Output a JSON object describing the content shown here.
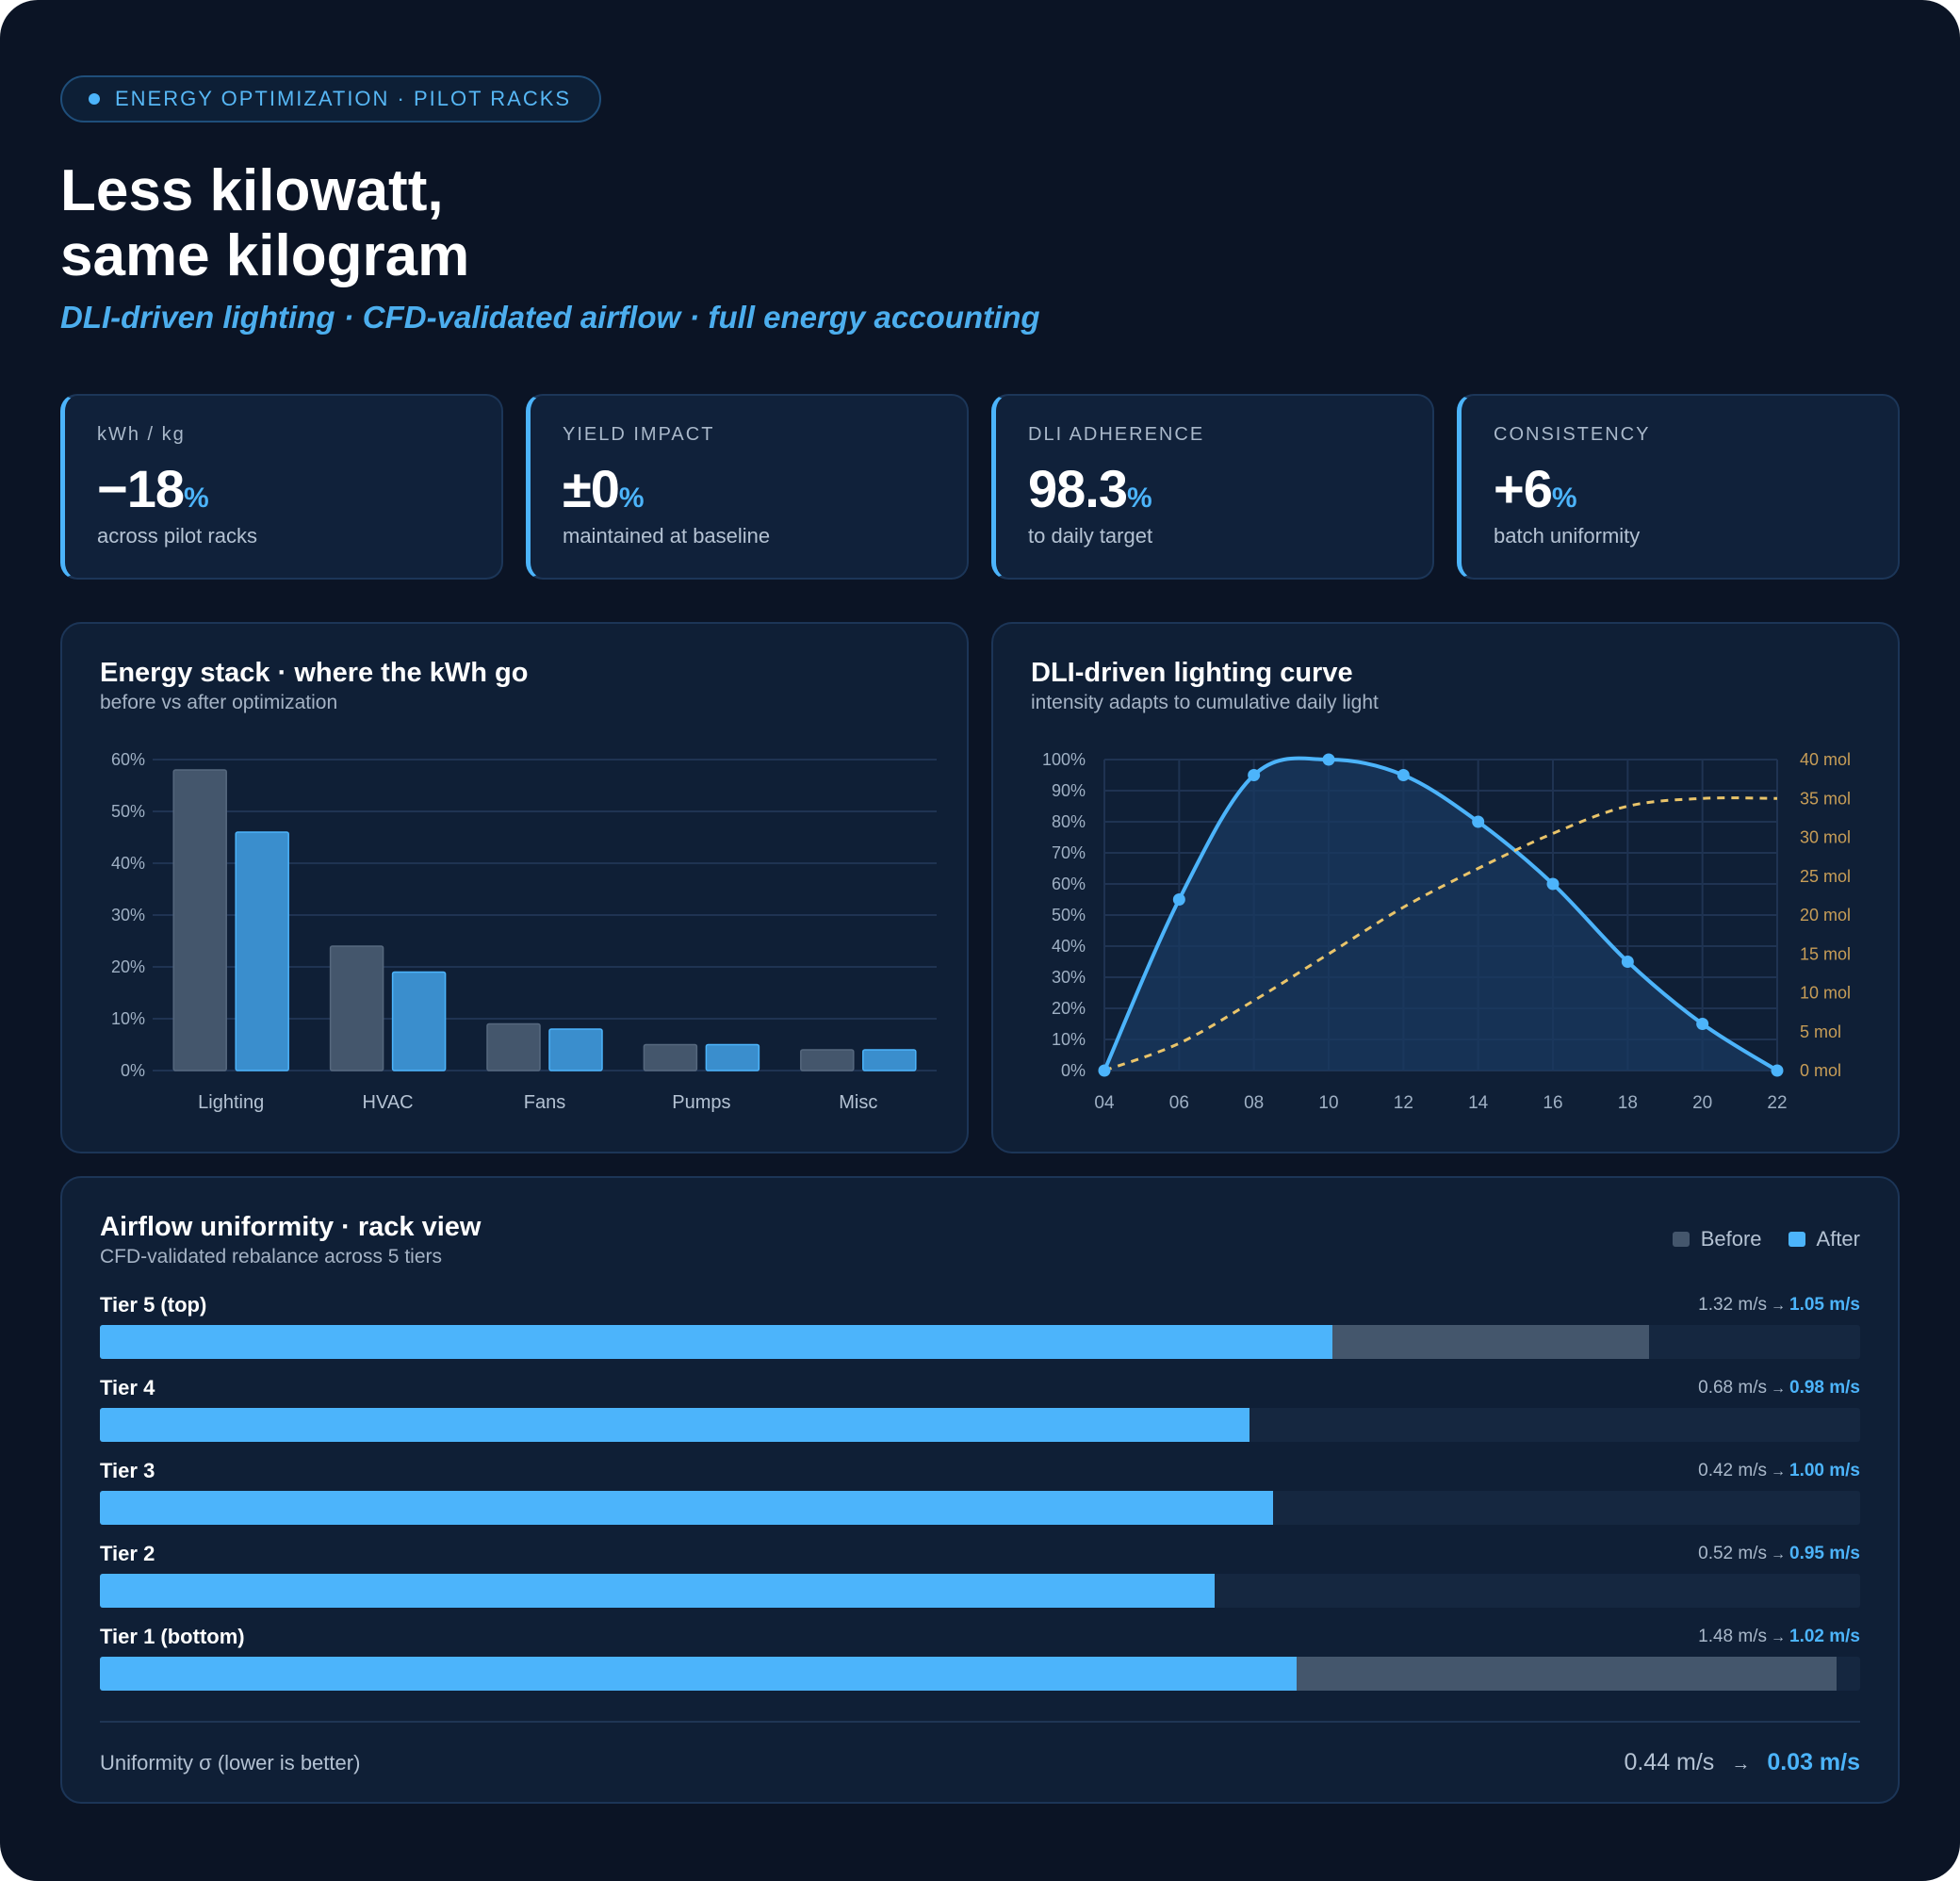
{
  "header": {
    "badge": "ENERGY OPTIMIZATION · PILOT RACKS",
    "title_line1": "Less kilowatt,",
    "title_line2": "same kilogram",
    "subtitle": "DLI-driven lighting · CFD-validated airflow · full energy accounting"
  },
  "kpis": [
    {
      "label": "kWh / kg",
      "value": "−18",
      "unit": "%",
      "note": "across pilot racks"
    },
    {
      "label": "YIELD IMPACT",
      "value": "±0",
      "unit": "%",
      "note": "maintained at baseline"
    },
    {
      "label": "DLI ADHERENCE",
      "value": "98.3",
      "unit": "%",
      "note": "to daily target"
    },
    {
      "label": "CONSISTENCY",
      "value": "+6",
      "unit": "%",
      "note": "batch uniformity"
    }
  ],
  "colors": {
    "accent": "#4cb4fb",
    "before": "#44566c",
    "after": "#4cb4fb",
    "cumulative": "#e9c46a"
  },
  "energy": {
    "title": "Energy stack · where the kWh go",
    "subtitle": "before vs after optimization"
  },
  "lighting": {
    "title": "DLI-driven lighting curve",
    "subtitle": "intensity adapts to cumulative daily light"
  },
  "airflow": {
    "title": "Airflow uniformity · rack view",
    "subtitle": "CFD-validated rebalance across 5 tiers",
    "legend_before": "Before",
    "legend_after": "After",
    "scale_max": 1.5,
    "tiers": [
      {
        "name": "Tier 5 (top)",
        "before": 1.32,
        "after": 1.05,
        "before_label": "1.32 m/s",
        "after_label": "1.05 m/s"
      },
      {
        "name": "Tier 4",
        "before": 0.68,
        "after": 0.98,
        "before_label": "0.68 m/s",
        "after_label": "0.98 m/s"
      },
      {
        "name": "Tier 3",
        "before": 0.42,
        "after": 1.0,
        "before_label": "0.42 m/s",
        "after_label": "1.00 m/s"
      },
      {
        "name": "Tier 2",
        "before": 0.52,
        "after": 0.95,
        "before_label": "0.52 m/s",
        "after_label": "0.95 m/s"
      },
      {
        "name": "Tier 1 (bottom)",
        "before": 1.48,
        "after": 1.02,
        "before_label": "1.48 m/s",
        "after_label": "1.02 m/s"
      }
    ],
    "sigma_label": "Uniformity σ (lower is better)",
    "sigma_before": "0.44 m/s",
    "sigma_after": "0.03 m/s",
    "arrow": "→"
  },
  "chart_data": [
    {
      "type": "bar",
      "title": "Energy stack · where the kWh go",
      "subtitle": "before vs after optimization",
      "categories": [
        "Lighting",
        "HVAC",
        "Fans",
        "Pumps",
        "Misc"
      ],
      "series": [
        {
          "name": "Before",
          "values": [
            58,
            24,
            9,
            5,
            4
          ]
        },
        {
          "name": "After",
          "values": [
            46,
            19,
            8,
            5,
            4
          ]
        }
      ],
      "ylim": [
        0,
        60
      ],
      "yticks": [
        "0%",
        "10%",
        "20%",
        "30%",
        "40%",
        "50%",
        "60%"
      ],
      "grid": true
    },
    {
      "type": "line",
      "title": "DLI-driven lighting curve",
      "subtitle": "intensity adapts to cumulative daily light",
      "x": [
        "04",
        "06",
        "08",
        "10",
        "12",
        "14",
        "16",
        "18",
        "20",
        "22"
      ],
      "series": [
        {
          "values": [
            0,
            55,
            95,
            100,
            95,
            80,
            60,
            35,
            15,
            0
          ],
          "axis": "left"
        },
        {
          "values": [
            0,
            3.5,
            9,
            15,
            21,
            26,
            30.5,
            34,
            35,
            35
          ],
          "axis": "right"
        }
      ],
      "ylim": [
        0,
        100
      ],
      "y2lim": [
        0,
        40
      ],
      "yticks": [
        "0%",
        "10%",
        "20%",
        "30%",
        "40%",
        "50%",
        "60%",
        "70%",
        "80%",
        "90%",
        "100%"
      ],
      "y2ticks": [
        "0 mol",
        "5 mol",
        "10 mol",
        "15 mol",
        "20 mol",
        "25 mol",
        "30 mol",
        "35 mol",
        "40 mol"
      ],
      "grid": true
    }
  ]
}
